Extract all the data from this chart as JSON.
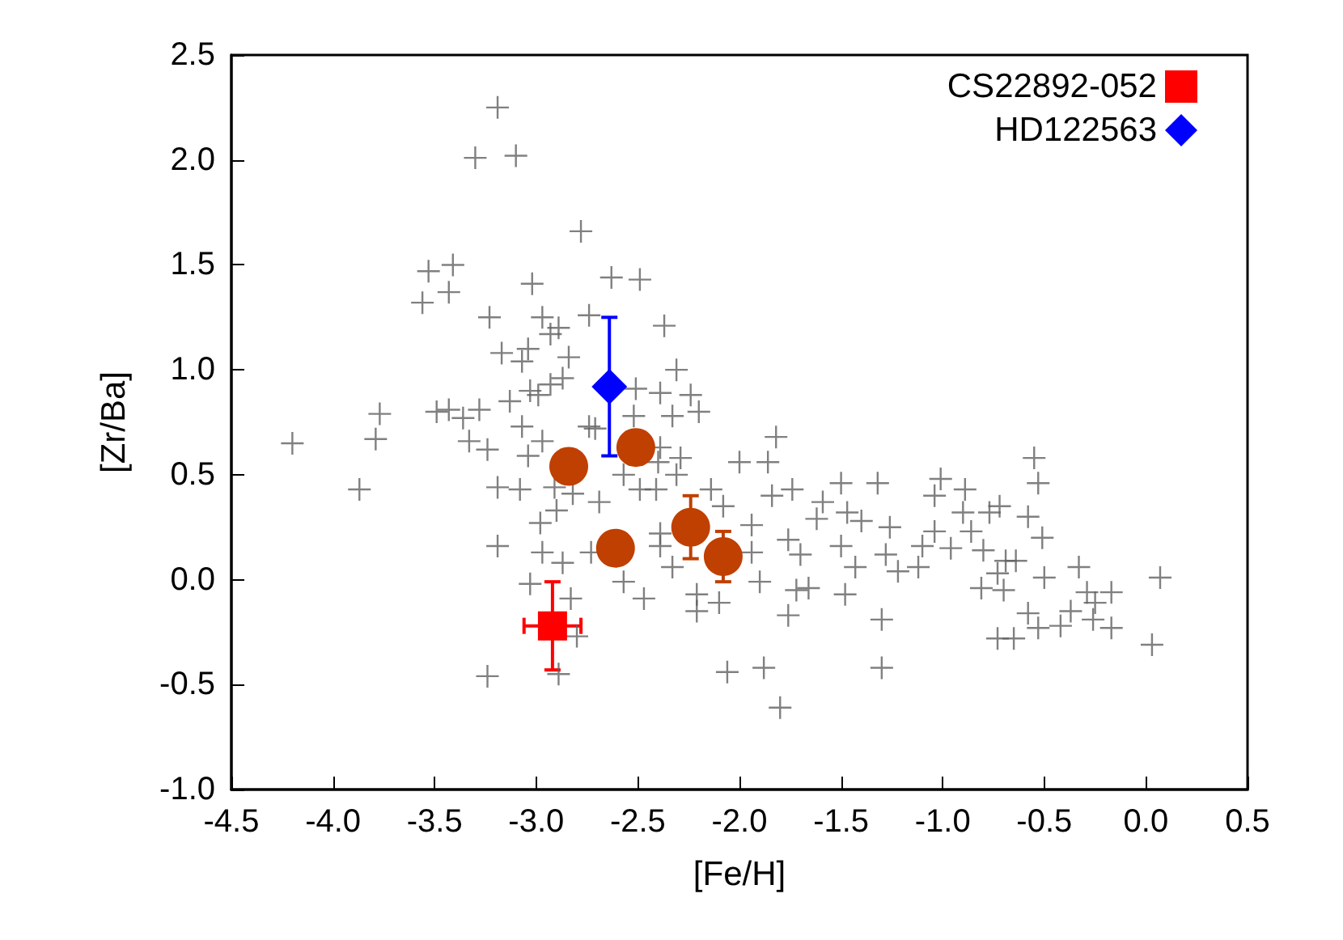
{
  "chart_data": {
    "type": "scatter",
    "xlabel": "[Fe/H]",
    "ylabel": "[Zr/Ba]",
    "xlim": [
      -4.5,
      0.5
    ],
    "xticks": [
      -4.5,
      {
        "value": -4,
        "label": "-4.0"
      },
      -3.5,
      {
        "value": -3,
        "label": "-3.0"
      },
      -2.5,
      {
        "value": -2,
        "label": "-2.0"
      },
      -1.5,
      {
        "value": -1,
        "label": "-1.0"
      },
      -0.5,
      {
        "value": 0,
        "label": "0.0"
      },
      0.5
    ],
    "ylim": [
      -1.0,
      2.5
    ],
    "yticks": [
      {
        "value": -1,
        "label": "-1.0"
      },
      -0.5,
      {
        "value": 0,
        "label": "0.0"
      },
      0.5,
      {
        "value": 1,
        "label": "1.0"
      },
      1.5,
      {
        "value": 2,
        "label": "2.0"
      },
      2.5
    ],
    "grid": false,
    "legend": "top right",
    "series": [
      {
        "color": "#606060",
        "marker": "cross",
        "x": [
          -3.19,
          -3.3,
          -3.1,
          -2.78,
          -3.53,
          -3.41,
          -3.43,
          -3.56,
          -3.23,
          -3.02,
          -2.97,
          -2.89,
          -2.93,
          -3.17,
          -3.04,
          -3.07,
          -2.84,
          -3.13,
          -3.03,
          -2.99,
          -2.93,
          -2.87,
          -3.77,
          -3.49,
          -3.43,
          -3.36,
          -3.28,
          -3.07,
          -4.2,
          -3.87,
          -3.79,
          -3.33,
          -3.24,
          -2.97,
          -3.04,
          -3.19,
          -3.08,
          -2.91,
          -2.9,
          -2.98,
          -3.19,
          -2.97,
          -2.87,
          -3.03,
          -3.24,
          -2.89,
          -2.63,
          -2.49,
          -2.74,
          -2.37,
          -2.31,
          -2.51,
          -2.39,
          -2.24,
          -2.33,
          -2.2,
          -2.74,
          -2.71,
          -2.52,
          -2.39,
          -2.29,
          -2.4,
          -2.31,
          -1.82,
          -2.0,
          -1.86,
          -2.57,
          -2.49,
          -2.41,
          -2.14,
          -2.69,
          -2.82,
          -1.84,
          -1.74,
          -1.5,
          -1.32,
          -1.59,
          -1.47,
          -1.4,
          -1.62,
          -1.26,
          -2.39,
          -2.39,
          -2.08,
          -1.94,
          -1.76,
          -1.5,
          -2.33,
          -1.94,
          -1.7,
          -2.73,
          -2.57,
          -2.47,
          -2.21,
          -2.21,
          -2.1,
          -1.9,
          -1.72,
          -1.66,
          -1.48,
          -1.76,
          -1.43,
          -1.28,
          -1.22,
          -1.3,
          -2.06,
          -1.88,
          -1.8,
          -1.3,
          -2.83,
          -2.8,
          -0.55,
          -0.53,
          -1.01,
          -1.04,
          -0.89,
          -0.9,
          -0.77,
          -0.72,
          -0.58,
          -1.04,
          -0.86,
          -0.51,
          -1.1,
          -0.96,
          -0.8,
          -0.69,
          -0.64,
          -1.12,
          -0.73,
          -0.5,
          -0.33,
          0.07,
          -0.81,
          -0.7,
          -0.29,
          -0.17,
          -0.25,
          -0.37,
          -0.58,
          -0.26,
          -0.53,
          -0.42,
          -0.17,
          -0.73,
          -0.65,
          0.03
        ],
        "values": [
          2.25,
          2.01,
          2.02,
          1.66,
          1.47,
          1.5,
          1.37,
          1.32,
          1.25,
          1.41,
          1.25,
          1.2,
          1.17,
          1.08,
          1.1,
          1.04,
          1.06,
          0.85,
          0.9,
          0.88,
          0.93,
          0.96,
          0.79,
          0.8,
          0.81,
          0.77,
          0.81,
          0.73,
          0.65,
          0.43,
          0.67,
          0.66,
          0.62,
          0.66,
          0.59,
          0.44,
          0.43,
          0.44,
          0.33,
          0.27,
          0.16,
          0.13,
          0.08,
          -0.02,
          -0.46,
          -0.45,
          1.44,
          1.43,
          1.26,
          1.21,
          1.0,
          0.91,
          0.89,
          0.88,
          0.78,
          0.8,
          0.73,
          0.72,
          0.78,
          0.63,
          0.58,
          0.56,
          0.5,
          0.68,
          0.56,
          0.56,
          0.5,
          0.43,
          0.43,
          0.43,
          0.37,
          0.41,
          0.4,
          0.43,
          0.46,
          0.46,
          0.37,
          0.32,
          0.28,
          0.29,
          0.25,
          0.22,
          0.16,
          0.35,
          0.26,
          0.19,
          0.16,
          0.06,
          0.13,
          0.12,
          0.13,
          -0.01,
          -0.09,
          -0.07,
          -0.15,
          -0.11,
          -0.01,
          -0.05,
          -0.04,
          -0.07,
          -0.17,
          0.06,
          0.12,
          0.04,
          -0.19,
          -0.44,
          -0.42,
          -0.61,
          -0.42,
          -0.09,
          -0.27,
          0.58,
          0.46,
          0.48,
          0.4,
          0.43,
          0.32,
          0.32,
          0.35,
          0.3,
          0.23,
          0.23,
          0.2,
          0.16,
          0.15,
          0.14,
          0.09,
          0.09,
          0.06,
          0.03,
          0.01,
          0.06,
          0.01,
          -0.04,
          -0.05,
          -0.06,
          -0.06,
          -0.11,
          -0.15,
          -0.16,
          -0.19,
          -0.23,
          -0.22,
          -0.23,
          -0.28,
          -0.28,
          -0.31
        ]
      },
      {
        "color": "#bf4000",
        "marker": "circle",
        "x": [
          -2.84,
          -2.51,
          -2.61,
          -2.24,
          -2.08
        ],
        "values": [
          0.54,
          0.63,
          0.15,
          0.25,
          0.11
        ],
        "errors": [
          null,
          null,
          null,
          0.15,
          0.12
        ]
      },
      {
        "name": "CS22892-052",
        "color": "#ff0000",
        "marker": "square",
        "x": [
          -2.92
        ],
        "values": [
          -0.22
        ],
        "errors": [
          0.21
        ],
        "xerrors": [
          0.14
        ]
      },
      {
        "name": "HD122563",
        "color": "#0000ff",
        "marker": "diamond",
        "x": [
          -2.64
        ],
        "values": [
          0.92
        ],
        "errors": [
          0.33
        ]
      }
    ]
  }
}
